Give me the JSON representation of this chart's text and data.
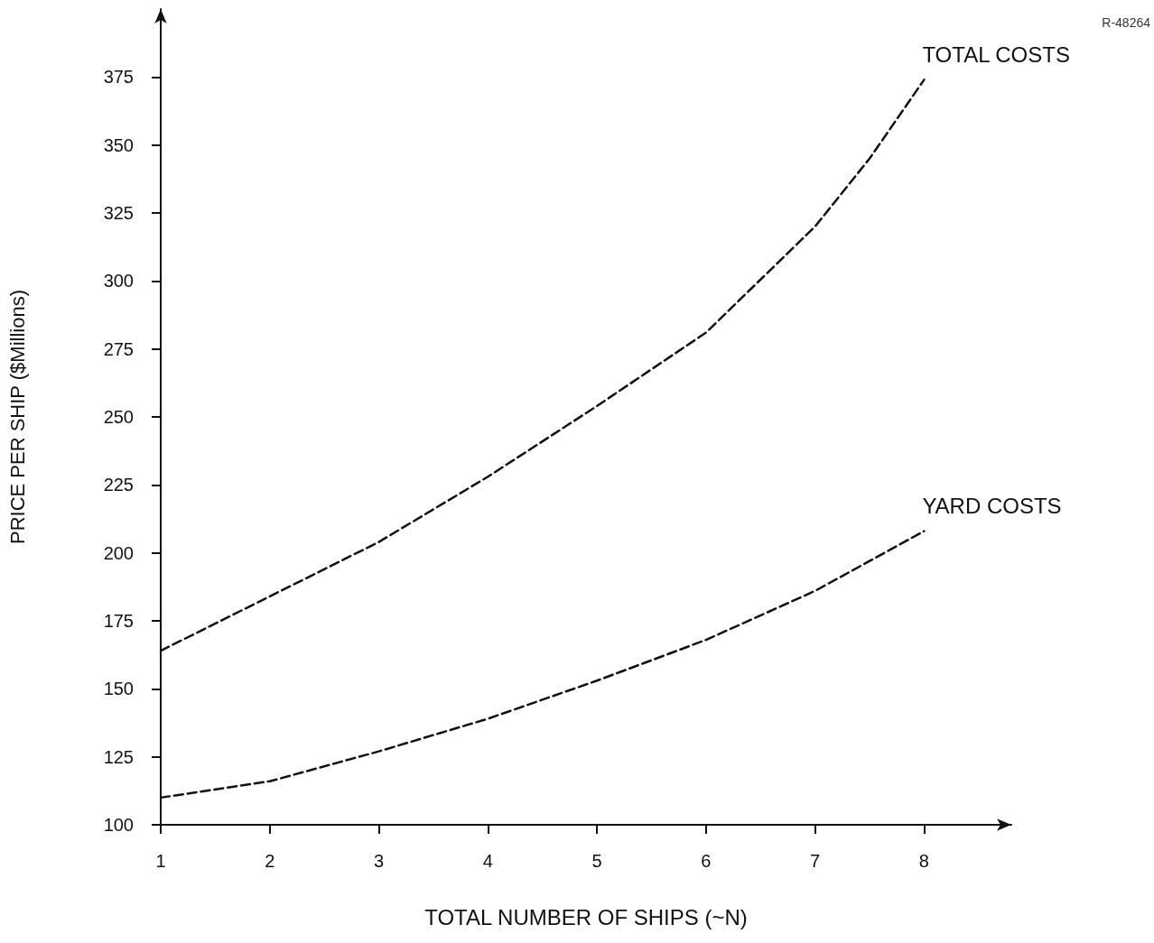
{
  "chart_data": {
    "type": "line",
    "xlabel": "TOTAL NUMBER OF SHIPS (~N)",
    "ylabel": "PRICE PER SHIP ($Millions)",
    "annotations": [
      "R-48264"
    ],
    "x": [
      1,
      2,
      3,
      4,
      5,
      6,
      7,
      7.5,
      8
    ],
    "series": [
      {
        "name": "TOTAL COSTS",
        "color": "#111111",
        "values": [
          164,
          184,
          204,
          228,
          254,
          281,
          320,
          345,
          374
        ]
      },
      {
        "name": "YARD COSTS",
        "color": "#111111",
        "values": [
          110,
          116,
          127,
          139,
          153,
          168,
          186,
          197,
          208
        ]
      }
    ],
    "xlim": [
      1,
      8.8
    ],
    "xticks": [
      1,
      2,
      3,
      4,
      5,
      6,
      7,
      8
    ],
    "ylim": [
      100,
      400
    ],
    "yticks": [
      100,
      125,
      150,
      175,
      200,
      225,
      250,
      275,
      300,
      325,
      350,
      375
    ],
    "grid": false,
    "legend": false,
    "marker": "none",
    "line_style": "dashed"
  }
}
